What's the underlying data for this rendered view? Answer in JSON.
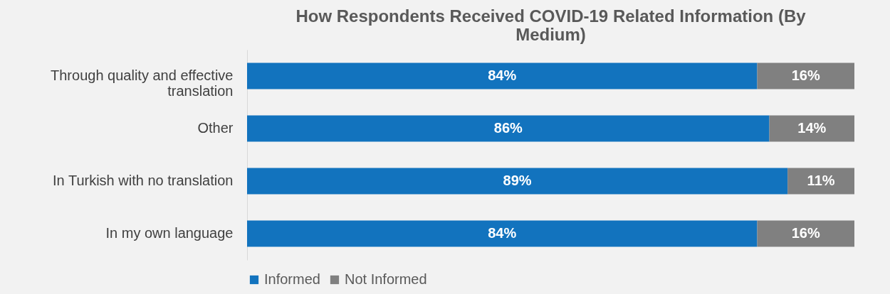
{
  "chart_data": {
    "type": "bar",
    "orientation": "horizontal",
    "stacked": true,
    "title": "How Respondents Received COVID-19 Related Information (By Medium)",
    "categories": [
      "Through quality and effective translation",
      "Other",
      "In Turkish with no translation",
      "In my own language"
    ],
    "series": [
      {
        "name": "Informed",
        "color": "#1273be",
        "values": [
          84,
          86,
          89,
          84
        ],
        "value_labels": [
          "84%",
          "86%",
          "89%",
          "84%"
        ]
      },
      {
        "name": "Not Informed",
        "color": "#808080",
        "values": [
          16,
          14,
          11,
          16
        ],
        "value_labels": [
          "16%",
          "14%",
          "11%",
          "16%"
        ]
      }
    ],
    "legend": "bottom"
  }
}
